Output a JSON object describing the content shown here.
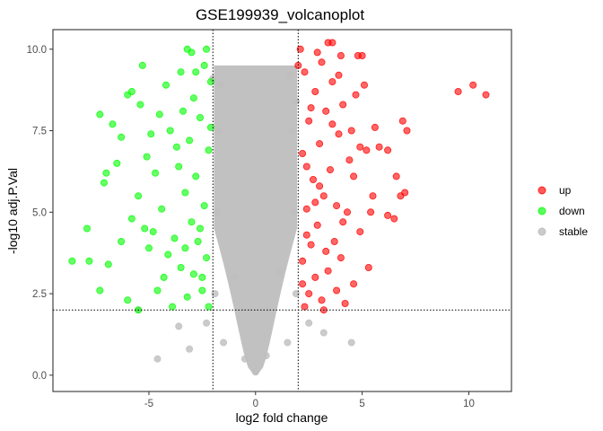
{
  "chart_data": {
    "type": "scatter",
    "title": "GSE199939_volcanoplot",
    "xlabel": "log2 fold change",
    "ylabel": "-log10 adj.P.Val",
    "xlim": [
      -9.5,
      12
    ],
    "ylim": [
      -0.5,
      10.6
    ],
    "x_ticks": [
      -5,
      0,
      5,
      10
    ],
    "y_ticks": [
      0.0,
      2.5,
      5.0,
      7.5,
      10.0
    ],
    "x_tick_labels": [
      "-5",
      "0",
      "5",
      "10"
    ],
    "y_tick_labels": [
      "0.0",
      "2.5",
      "5.0",
      "7.5",
      "10.0"
    ],
    "thresholds": {
      "logfc": [
        -2,
        2
      ],
      "neg_log10_padj": 2
    },
    "grid": false,
    "legend_position": "right",
    "series": [
      {
        "name": "up",
        "color": "#ff0000",
        "points": [
          [
            2.3,
            2.1
          ],
          [
            2.5,
            2.5
          ],
          [
            2.8,
            3.0
          ],
          [
            3.1,
            2.3
          ],
          [
            2.2,
            3.5
          ],
          [
            2.6,
            4.0
          ],
          [
            3.4,
            3.2
          ],
          [
            2.9,
            4.6
          ],
          [
            3.7,
            4.1
          ],
          [
            2.4,
            5.1
          ],
          [
            3.2,
            5.5
          ],
          [
            4.0,
            3.6
          ],
          [
            2.7,
            6.0
          ],
          [
            3.5,
            6.3
          ],
          [
            4.3,
            5.0
          ],
          [
            2.2,
            6.8
          ],
          [
            3.0,
            7.1
          ],
          [
            3.9,
            7.4
          ],
          [
            4.6,
            6.1
          ],
          [
            2.5,
            7.8
          ],
          [
            3.3,
            8.1
          ],
          [
            4.1,
            8.3
          ],
          [
            2.8,
            8.7
          ],
          [
            3.6,
            9.0
          ],
          [
            2.3,
            9.3
          ],
          [
            3.1,
            9.6
          ],
          [
            3.4,
            10.2
          ],
          [
            3.6,
            10.2
          ],
          [
            4.0,
            9.8
          ],
          [
            4.8,
            9.8
          ],
          [
            5.0,
            9.8
          ],
          [
            2.1,
            10.0
          ],
          [
            2.0,
            9.5
          ],
          [
            4.5,
            7.5
          ],
          [
            5.2,
            6.9
          ],
          [
            5.5,
            5.5
          ],
          [
            4.9,
            4.4
          ],
          [
            5.3,
            3.3
          ],
          [
            4.6,
            2.8
          ],
          [
            5.6,
            7.6
          ],
          [
            5.8,
            7.0
          ],
          [
            6.2,
            6.9
          ],
          [
            6.6,
            6.1
          ],
          [
            6.8,
            5.5
          ],
          [
            7.0,
            5.6
          ],
          [
            6.5,
            4.8
          ],
          [
            6.2,
            4.9
          ],
          [
            6.9,
            7.8
          ],
          [
            7.1,
            7.5
          ],
          [
            9.5,
            8.7
          ],
          [
            10.2,
            8.9
          ],
          [
            10.8,
            8.6
          ],
          [
            4.2,
            2.2
          ],
          [
            3.8,
            2.6
          ],
          [
            2.4,
            4.3
          ],
          [
            3.0,
            5.8
          ],
          [
            3.8,
            5.2
          ],
          [
            4.4,
            6.6
          ],
          [
            2.6,
            8.2
          ],
          [
            3.9,
            9.2
          ],
          [
            4.7,
            8.6
          ],
          [
            5.1,
            8.9
          ],
          [
            2.9,
            9.9
          ],
          [
            2.2,
            2.8
          ],
          [
            3.3,
            3.8
          ],
          [
            4.1,
            4.7
          ],
          [
            2.8,
            5.3
          ],
          [
            3.6,
            7.7
          ],
          [
            4.9,
            7.0
          ],
          [
            2.4,
            6.4
          ],
          [
            3.2,
            2.0
          ],
          [
            5.4,
            5.0
          ]
        ]
      },
      {
        "name": "down",
        "color": "#00ff00",
        "points": [
          [
            -2.2,
            2.1
          ],
          [
            -2.5,
            2.6
          ],
          [
            -2.9,
            3.1
          ],
          [
            -3.2,
            2.4
          ],
          [
            -2.3,
            3.6
          ],
          [
            -2.7,
            4.1
          ],
          [
            -3.5,
            3.3
          ],
          [
            -3.0,
            4.7
          ],
          [
            -3.8,
            4.2
          ],
          [
            -2.4,
            5.2
          ],
          [
            -3.3,
            5.6
          ],
          [
            -4.1,
            3.7
          ],
          [
            -2.8,
            6.1
          ],
          [
            -3.6,
            6.4
          ],
          [
            -4.4,
            5.1
          ],
          [
            -2.2,
            6.9
          ],
          [
            -3.1,
            7.2
          ],
          [
            -4.0,
            7.5
          ],
          [
            -4.7,
            6.2
          ],
          [
            -2.6,
            7.9
          ],
          [
            -3.4,
            8.1
          ],
          [
            -2.1,
            7.6
          ],
          [
            -2.9,
            8.5
          ],
          [
            -2.4,
            9.5
          ],
          [
            -2.8,
            9.3
          ],
          [
            -3.0,
            9.9
          ],
          [
            -3.2,
            10.0
          ],
          [
            -2.3,
            10.0
          ],
          [
            -4.5,
            8.0
          ],
          [
            -5.4,
            8.3
          ],
          [
            -6.0,
            8.6
          ],
          [
            -5.8,
            8.7
          ],
          [
            -5.3,
            9.5
          ],
          [
            -7.3,
            8.0
          ],
          [
            -6.7,
            7.7
          ],
          [
            -6.3,
            7.3
          ],
          [
            -6.5,
            6.5
          ],
          [
            -7.0,
            6.2
          ],
          [
            -7.1,
            5.9
          ],
          [
            -5.5,
            5.5
          ],
          [
            -5.2,
            4.5
          ],
          [
            -5.0,
            3.9
          ],
          [
            -5.8,
            4.8
          ],
          [
            -6.3,
            4.1
          ],
          [
            -6.9,
            3.4
          ],
          [
            -7.3,
            2.6
          ],
          [
            -6.0,
            2.3
          ],
          [
            -5.5,
            2.0
          ],
          [
            -7.8,
            3.5
          ],
          [
            -8.6,
            3.5
          ],
          [
            -7.9,
            4.5
          ],
          [
            -4.6,
            2.6
          ],
          [
            -3.9,
            2.1
          ],
          [
            -4.3,
            3.0
          ],
          [
            -4.8,
            4.4
          ],
          [
            -2.6,
            4.5
          ],
          [
            -3.7,
            7.0
          ],
          [
            -4.2,
            8.9
          ],
          [
            -2.1,
            9.0
          ],
          [
            -3.5,
            9.3
          ],
          [
            -4.9,
            7.4
          ],
          [
            -5.1,
            6.7
          ],
          [
            -2.5,
            3.0
          ],
          [
            -3.3,
            3.9
          ]
        ]
      },
      {
        "name": "stable",
        "color": "#bebebe",
        "points": [
          [
            -1.9,
            2.5
          ],
          [
            1.9,
            2.5
          ],
          [
            -1.8,
            5.0
          ],
          [
            1.8,
            5.0
          ],
          [
            -1.7,
            7.5
          ],
          [
            1.7,
            7.5
          ],
          [
            -1.6,
            8.9
          ],
          [
            1.6,
            9.2
          ],
          [
            -2.0,
            9.1
          ],
          [
            1.9,
            8.4
          ],
          [
            -1.5,
            1.0
          ],
          [
            1.5,
            1.0
          ],
          [
            -2.3,
            1.6
          ],
          [
            2.5,
            1.6
          ],
          [
            -3.1,
            0.8
          ],
          [
            3.2,
            1.3
          ],
          [
            -4.6,
            0.5
          ],
          [
            4.5,
            1.0
          ],
          [
            -5.5,
            2.0
          ],
          [
            -3.6,
            1.5
          ],
          [
            0.0,
            0.1
          ],
          [
            -0.5,
            0.5
          ],
          [
            0.5,
            0.6
          ],
          [
            -1.0,
            3.0
          ],
          [
            1.1,
            3.2
          ]
        ]
      }
    ]
  },
  "legend": {
    "items": [
      {
        "label": "up",
        "color": "#ff0000"
      },
      {
        "label": "down",
        "color": "#00ff00"
      },
      {
        "label": "stable",
        "color": "#bebebe"
      }
    ]
  }
}
